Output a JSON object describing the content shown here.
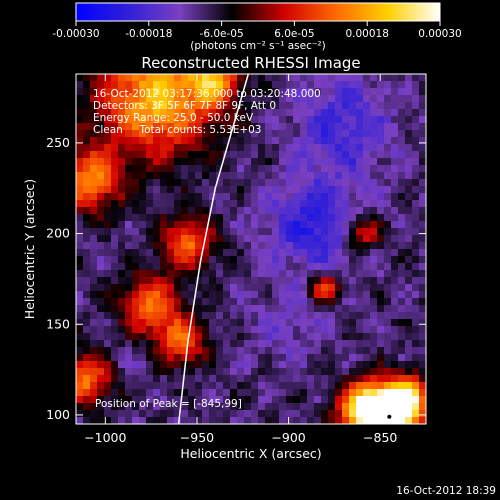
{
  "colorbar": {
    "stops": [
      "#0000ff",
      "#3020d8",
      "#7a40c0",
      "#000000",
      "#d00000",
      "#ff6a00",
      "#ffd000",
      "#ffffff"
    ],
    "tick_labels": [
      "-0.00030",
      "-0.00018",
      "-6.0e-05",
      "6.0e-05",
      "0.00018",
      "0.00030"
    ],
    "unit_label": "(photons cm⁻² s⁻¹ asec⁻²)"
  },
  "chart_data": {
    "type": "heatmap",
    "title": "Reconstructed RHESSI Image",
    "xlabel": "Heliocentric X (arcsec)",
    "ylabel": "Heliocentric Y (arcsec)",
    "xlim": [
      -1016,
      -825
    ],
    "ylim": [
      95,
      288
    ],
    "xticks": [
      -1000,
      -950,
      -900,
      -850
    ],
    "yticks": [
      100,
      150,
      200,
      250
    ],
    "vlim": [
      -0.0003,
      0.0003
    ],
    "info_lines": [
      "16-Oct-2012 03:17:36.000 to 03:20:48.000",
      "Detectors: 3F 5F 6F 7F 8F 9F, Att 0",
      "Energy Range: 25.0 - 50.0 keV",
      "Clean     Total counts: 5.53E+03"
    ],
    "peak_label": "Position of Peak = [-845,99]",
    "peak": {
      "x": -845,
      "y": 99
    },
    "limb_curve": [
      [
        -960,
        95
      ],
      [
        -955,
        140
      ],
      [
        -948,
        185
      ],
      [
        -940,
        225
      ],
      [
        -930,
        260
      ],
      [
        -922,
        288
      ]
    ],
    "hotspots": [
      {
        "x": -845,
        "y": 99,
        "r": 12,
        "v": 0.0003
      },
      {
        "x": -858,
        "y": 103,
        "r": 10,
        "v": 0.00022
      },
      {
        "x": -835,
        "y": 110,
        "r": 8,
        "v": 0.00015
      },
      {
        "x": -972,
        "y": 275,
        "r": 22,
        "v": 0.0002
      },
      {
        "x": -1008,
        "y": 230,
        "r": 12,
        "v": 0.00015
      },
      {
        "x": -1010,
        "y": 120,
        "r": 10,
        "v": 0.00013
      },
      {
        "x": -955,
        "y": 195,
        "r": 10,
        "v": 0.00012
      },
      {
        "x": -975,
        "y": 160,
        "r": 12,
        "v": 0.00012
      },
      {
        "x": -958,
        "y": 140,
        "r": 9,
        "v": 0.00011
      },
      {
        "x": -880,
        "y": 170,
        "r": 6,
        "v": 0.0001
      },
      {
        "x": -860,
        "y": 200,
        "r": 7,
        "v": 9e-05
      },
      {
        "x": -940,
        "y": 285,
        "r": 10,
        "v": 0.00012
      }
    ],
    "coldspots": [
      {
        "x": -885,
        "y": 205,
        "r": 18,
        "v": -0.00022
      },
      {
        "x": -870,
        "y": 260,
        "r": 18,
        "v": -0.0002
      },
      {
        "x": -900,
        "y": 150,
        "r": 14,
        "v": -0.00014
      },
      {
        "x": -990,
        "y": 130,
        "r": 10,
        "v": -0.00012
      },
      {
        "x": -1000,
        "y": 190,
        "r": 8,
        "v": -0.0001
      }
    ]
  },
  "timestamp": "16-Oct-2012 18:39"
}
